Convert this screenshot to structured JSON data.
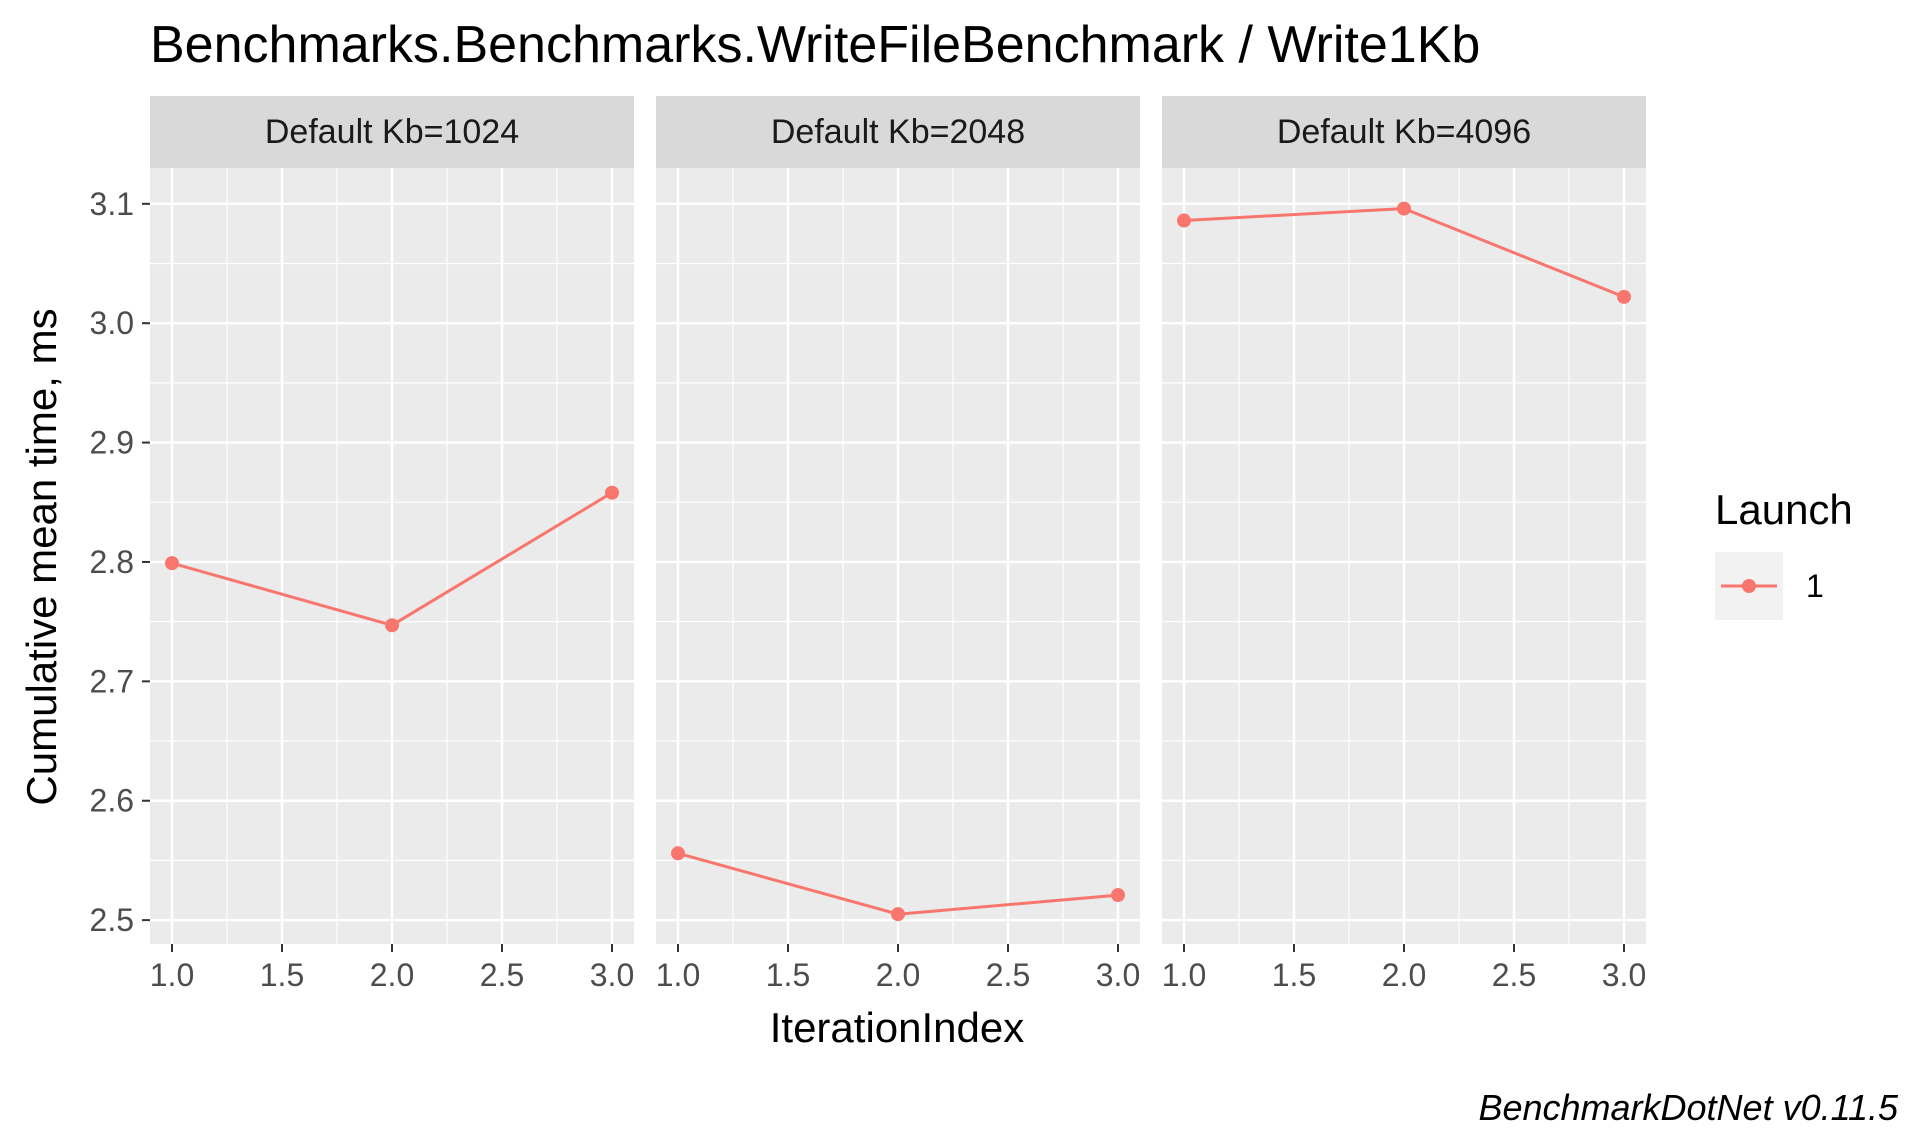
{
  "chart_data": {
    "type": "line",
    "title": "Benchmarks.Benchmarks.WriteFileBenchmark / Write1Kb",
    "xlabel": "IterationIndex",
    "ylabel": "Cumulative mean time, ms",
    "caption": "BenchmarkDotNet v0.11.5",
    "xlim": [
      0.9,
      3.1
    ],
    "ylim": [
      2.48,
      3.13
    ],
    "x_ticks": [
      "1.0",
      "1.5",
      "2.0",
      "2.5",
      "3.0"
    ],
    "y_ticks": [
      "2.5",
      "2.6",
      "2.7",
      "2.8",
      "2.9",
      "3.0",
      "3.1"
    ],
    "grid": true,
    "legend": {
      "title": "Launch",
      "position": "right",
      "entries": [
        "1"
      ]
    },
    "series_color": "#F8766D",
    "facets": [
      {
        "label": "Default Kb=1024",
        "series": [
          {
            "name": "1",
            "x": [
              1,
              2,
              3
            ],
            "y": [
              2.799,
              2.747,
              2.858
            ]
          }
        ]
      },
      {
        "label": "Default Kb=2048",
        "series": [
          {
            "name": "1",
            "x": [
              1,
              2,
              3
            ],
            "y": [
              2.556,
              2.505,
              2.521
            ]
          }
        ]
      },
      {
        "label": "Default Kb=4096",
        "series": [
          {
            "name": "1",
            "x": [
              1,
              2,
              3
            ],
            "y": [
              3.086,
              3.096,
              3.022
            ]
          }
        ]
      }
    ]
  }
}
